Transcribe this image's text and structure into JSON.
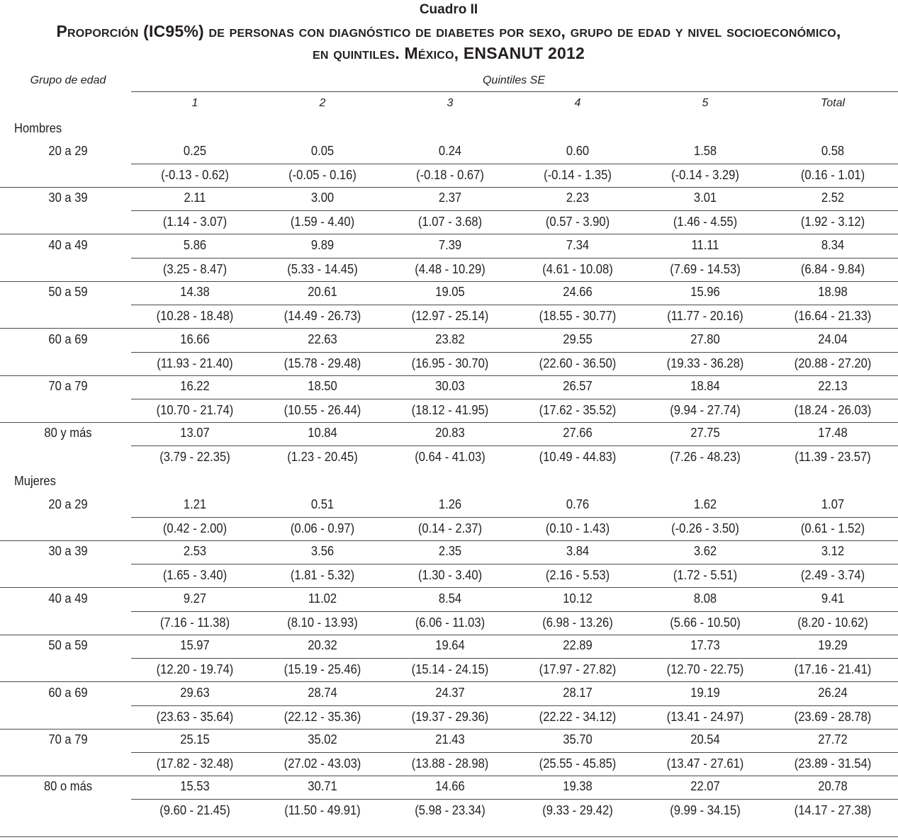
{
  "table_number": "Cuadro II",
  "title_line1": "Proporción (IC95%) de personas con diagnóstico de diabetes por sexo, grupo de edad y nivel socioeconómico,",
  "title_line2": "en quintiles. México, ENSANUT 2012",
  "header": {
    "row_label": "Grupo de edad",
    "group_label": "Quintiles SE",
    "columns": [
      "1",
      "2",
      "3",
      "4",
      "5",
      "Total"
    ]
  },
  "sections": [
    {
      "label": "Hombres",
      "rows": [
        {
          "age": "20 a 29",
          "values": [
            "0.25",
            "0.05",
            "0.24",
            "0.60",
            "1.58",
            "0.58"
          ],
          "ci": [
            "(-0.13 - 0.62)",
            "(-0.05 - 0.16)",
            "(-0.18 - 0.67)",
            "(-0.14 - 1.35)",
            "(-0.14 - 3.29)",
            "(0.16 - 1.01)"
          ]
        },
        {
          "age": "30 a 39",
          "values": [
            "2.11",
            "3.00",
            "2.37",
            "2.23",
            "3.01",
            "2.52"
          ],
          "ci": [
            "(1.14 - 3.07)",
            "(1.59 - 4.40)",
            "(1.07 - 3.68)",
            "(0.57 - 3.90)",
            "(1.46 - 4.55)",
            "(1.92 - 3.12)"
          ]
        },
        {
          "age": "40 a 49",
          "values": [
            "5.86",
            "9.89",
            "7.39",
            "7.34",
            "11.11",
            "8.34"
          ],
          "ci": [
            "(3.25 - 8.47)",
            "(5.33 - 14.45)",
            "(4.48 - 10.29)",
            "(4.61 - 10.08)",
            "(7.69 - 14.53)",
            "(6.84 - 9.84)"
          ]
        },
        {
          "age": "50 a 59",
          "values": [
            "14.38",
            "20.61",
            "19.05",
            "24.66",
            "15.96",
            "18.98"
          ],
          "ci": [
            "(10.28 - 18.48)",
            "(14.49 - 26.73)",
            "(12.97 - 25.14)",
            "(18.55 - 30.77)",
            "(11.77 - 20.16)",
            "(16.64 - 21.33)"
          ]
        },
        {
          "age": "60 a 69",
          "values": [
            "16.66",
            "22.63",
            "23.82",
            "29.55",
            "27.80",
            "24.04"
          ],
          "ci": [
            "(11.93 - 21.40)",
            "(15.78 - 29.48)",
            "(16.95 - 30.70)",
            "(22.60 - 36.50)",
            "(19.33 - 36.28)",
            "(20.88 - 27.20)"
          ]
        },
        {
          "age": "70 a 79",
          "values": [
            "16.22",
            "18.50",
            "30.03",
            "26.57",
            "18.84",
            "22.13"
          ],
          "ci": [
            "(10.70 - 21.74)",
            "(10.55 - 26.44)",
            "(18.12 - 41.95)",
            "(17.62 - 35.52)",
            "(9.94 - 27.74)",
            "(18.24 - 26.03)"
          ]
        },
        {
          "age": "80 y más",
          "values": [
            "13.07",
            "10.84",
            "20.83",
            "27.66",
            "27.75",
            "17.48"
          ],
          "ci": [
            "(3.79 - 22.35)",
            "(1.23 - 20.45)",
            "(0.64 - 41.03)",
            "(10.49 - 44.83)",
            "(7.26 - 48.23)",
            "(11.39 - 23.57)"
          ]
        }
      ]
    },
    {
      "label": "Mujeres",
      "rows": [
        {
          "age": "20 a 29",
          "values": [
            "1.21",
            "0.51",
            "1.26",
            "0.76",
            "1.62",
            "1.07"
          ],
          "ci": [
            "(0.42 - 2.00)",
            "(0.06 - 0.97)",
            "(0.14 - 2.37)",
            "(0.10 - 1.43)",
            "(-0.26 - 3.50)",
            "(0.61 - 1.52)"
          ]
        },
        {
          "age": "30 a 39",
          "values": [
            "2.53",
            "3.56",
            "2.35",
            "3.84",
            "3.62",
            "3.12"
          ],
          "ci": [
            "(1.65 - 3.40)",
            "(1.81 - 5.32)",
            "(1.30 - 3.40)",
            "(2.16 - 5.53)",
            "(1.72 - 5.51)",
            "(2.49 - 3.74)"
          ]
        },
        {
          "age": "40 a 49",
          "values": [
            "9.27",
            "11.02",
            "8.54",
            "10.12",
            "8.08",
            "9.41"
          ],
          "ci": [
            "(7.16 - 11.38)",
            "(8.10 - 13.93)",
            "(6.06 - 11.03)",
            "(6.98 - 13.26)",
            "(5.66 - 10.50)",
            "(8.20 - 10.62)"
          ]
        },
        {
          "age": "50 a 59",
          "values": [
            "15.97",
            "20.32",
            "19.64",
            "22.89",
            "17.73",
            "19.29"
          ],
          "ci": [
            "(12.20 - 19.74)",
            "(15.19 - 25.46)",
            "(15.14 - 24.15)",
            "(17.97 - 27.82)",
            "(12.70 - 22.75)",
            "(17.16 - 21.41)"
          ]
        },
        {
          "age": "60 a 69",
          "values": [
            "29.63",
            "28.74",
            "24.37",
            "28.17",
            "19.19",
            "26.24"
          ],
          "ci": [
            "(23.63 - 35.64)",
            "(22.12 - 35.36)",
            "(19.37 - 29.36)",
            "(22.22 - 34.12)",
            "(13.41 - 24.97)",
            "(23.69 - 28.78)"
          ]
        },
        {
          "age": "70 a 79",
          "values": [
            "25.15",
            "35.02",
            "21.43",
            "35.70",
            "20.54",
            "27.72"
          ],
          "ci": [
            "(17.82 - 32.48)",
            "(27.02 - 43.03)",
            "(13.88 - 28.98)",
            "(25.55 - 45.85)",
            "(13.47 - 27.61)",
            "(23.89 - 31.54)"
          ]
        },
        {
          "age": "80 o más",
          "values": [
            "15.53",
            "30.71",
            "14.66",
            "19.38",
            "22.07",
            "20.78"
          ],
          "ci": [
            "(9.60 - 21.45)",
            "(11.50 - 49.91)",
            "(5.98 - 23.34)",
            "(9.33 - 29.42)",
            "(9.99 - 34.15)",
            "(14.17 - 27.38)"
          ]
        }
      ]
    }
  ]
}
